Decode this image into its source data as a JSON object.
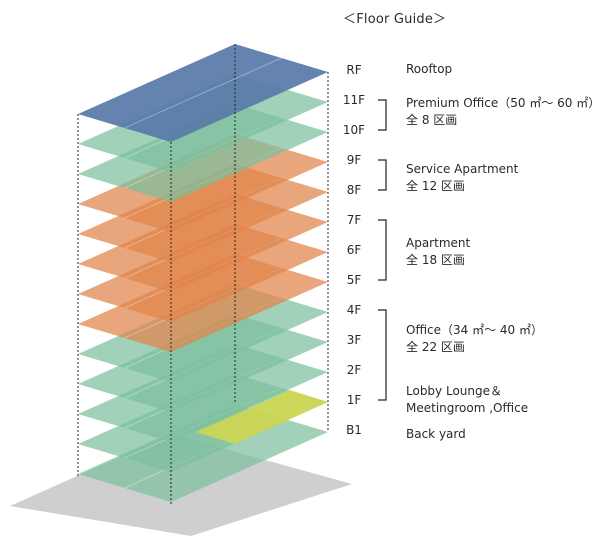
{
  "guide": {
    "title": "＜Floor Guide＞",
    "floors": [
      "RF",
      "11F",
      "10F",
      "9F",
      "8F",
      "7F",
      "6F",
      "5F",
      "4F",
      "3F",
      "2F",
      "1F",
      "B1"
    ],
    "zones": [
      {
        "lines": [
          "Rooftop"
        ]
      },
      {
        "lines": [
          "Premium Office（50 ㎡～ 60 ㎡）",
          "全 8 区画"
        ]
      },
      {
        "lines": [
          "Service Apartment",
          "全 12 区画"
        ]
      },
      {
        "lines": [
          "Apartment",
          "全 18 区画"
        ]
      },
      {
        "lines": [
          "Office（34 ㎡～ 40 ㎡）",
          "全 22 区画"
        ]
      },
      {
        "lines": [
          "Lobby Lounge＆",
          "Meetingroom ,Office"
        ]
      },
      {
        "lines": [
          "Back yard"
        ]
      }
    ]
  },
  "colors": {
    "rooftop": "#5878a8",
    "office": "#7dbf9e",
    "apartment": "#e0834a",
    "lobby_highlight": "#d4d84a",
    "ground": "#cfcfcf"
  }
}
